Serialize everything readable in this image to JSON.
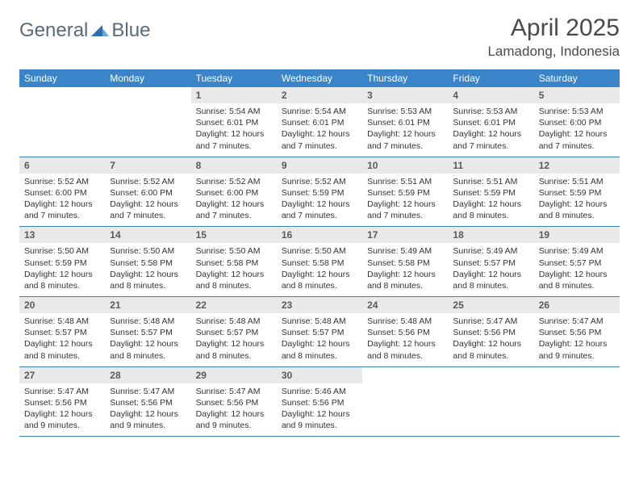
{
  "brand": {
    "part1": "General",
    "part2": "Blue"
  },
  "title": "April 2025",
  "location": "Lamadong, Indonesia",
  "colors": {
    "header_bg": "#3a85c9",
    "header_text": "#ffffff",
    "daynum_bg": "#e9e9e9",
    "border": "#3a7fb5",
    "logo_gray": "#5a6b78",
    "logo_blue": "#3a7fc4",
    "text": "#333333"
  },
  "weekdays": [
    "Sunday",
    "Monday",
    "Tuesday",
    "Wednesday",
    "Thursday",
    "Friday",
    "Saturday"
  ],
  "weeks": [
    [
      {
        "n": "",
        "sr": "",
        "ss": "",
        "dl": ""
      },
      {
        "n": "",
        "sr": "",
        "ss": "",
        "dl": ""
      },
      {
        "n": "1",
        "sr": "5:54 AM",
        "ss": "6:01 PM",
        "dl": "12 hours and 7 minutes."
      },
      {
        "n": "2",
        "sr": "5:54 AM",
        "ss": "6:01 PM",
        "dl": "12 hours and 7 minutes."
      },
      {
        "n": "3",
        "sr": "5:53 AM",
        "ss": "6:01 PM",
        "dl": "12 hours and 7 minutes."
      },
      {
        "n": "4",
        "sr": "5:53 AM",
        "ss": "6:01 PM",
        "dl": "12 hours and 7 minutes."
      },
      {
        "n": "5",
        "sr": "5:53 AM",
        "ss": "6:00 PM",
        "dl": "12 hours and 7 minutes."
      }
    ],
    [
      {
        "n": "6",
        "sr": "5:52 AM",
        "ss": "6:00 PM",
        "dl": "12 hours and 7 minutes."
      },
      {
        "n": "7",
        "sr": "5:52 AM",
        "ss": "6:00 PM",
        "dl": "12 hours and 7 minutes."
      },
      {
        "n": "8",
        "sr": "5:52 AM",
        "ss": "6:00 PM",
        "dl": "12 hours and 7 minutes."
      },
      {
        "n": "9",
        "sr": "5:52 AM",
        "ss": "5:59 PM",
        "dl": "12 hours and 7 minutes."
      },
      {
        "n": "10",
        "sr": "5:51 AM",
        "ss": "5:59 PM",
        "dl": "12 hours and 7 minutes."
      },
      {
        "n": "11",
        "sr": "5:51 AM",
        "ss": "5:59 PM",
        "dl": "12 hours and 8 minutes."
      },
      {
        "n": "12",
        "sr": "5:51 AM",
        "ss": "5:59 PM",
        "dl": "12 hours and 8 minutes."
      }
    ],
    [
      {
        "n": "13",
        "sr": "5:50 AM",
        "ss": "5:59 PM",
        "dl": "12 hours and 8 minutes."
      },
      {
        "n": "14",
        "sr": "5:50 AM",
        "ss": "5:58 PM",
        "dl": "12 hours and 8 minutes."
      },
      {
        "n": "15",
        "sr": "5:50 AM",
        "ss": "5:58 PM",
        "dl": "12 hours and 8 minutes."
      },
      {
        "n": "16",
        "sr": "5:50 AM",
        "ss": "5:58 PM",
        "dl": "12 hours and 8 minutes."
      },
      {
        "n": "17",
        "sr": "5:49 AM",
        "ss": "5:58 PM",
        "dl": "12 hours and 8 minutes."
      },
      {
        "n": "18",
        "sr": "5:49 AM",
        "ss": "5:57 PM",
        "dl": "12 hours and 8 minutes."
      },
      {
        "n": "19",
        "sr": "5:49 AM",
        "ss": "5:57 PM",
        "dl": "12 hours and 8 minutes."
      }
    ],
    [
      {
        "n": "20",
        "sr": "5:48 AM",
        "ss": "5:57 PM",
        "dl": "12 hours and 8 minutes."
      },
      {
        "n": "21",
        "sr": "5:48 AM",
        "ss": "5:57 PM",
        "dl": "12 hours and 8 minutes."
      },
      {
        "n": "22",
        "sr": "5:48 AM",
        "ss": "5:57 PM",
        "dl": "12 hours and 8 minutes."
      },
      {
        "n": "23",
        "sr": "5:48 AM",
        "ss": "5:57 PM",
        "dl": "12 hours and 8 minutes."
      },
      {
        "n": "24",
        "sr": "5:48 AM",
        "ss": "5:56 PM",
        "dl": "12 hours and 8 minutes."
      },
      {
        "n": "25",
        "sr": "5:47 AM",
        "ss": "5:56 PM",
        "dl": "12 hours and 8 minutes."
      },
      {
        "n": "26",
        "sr": "5:47 AM",
        "ss": "5:56 PM",
        "dl": "12 hours and 9 minutes."
      }
    ],
    [
      {
        "n": "27",
        "sr": "5:47 AM",
        "ss": "5:56 PM",
        "dl": "12 hours and 9 minutes."
      },
      {
        "n": "28",
        "sr": "5:47 AM",
        "ss": "5:56 PM",
        "dl": "12 hours and 9 minutes."
      },
      {
        "n": "29",
        "sr": "5:47 AM",
        "ss": "5:56 PM",
        "dl": "12 hours and 9 minutes."
      },
      {
        "n": "30",
        "sr": "5:46 AM",
        "ss": "5:56 PM",
        "dl": "12 hours and 9 minutes."
      },
      {
        "n": "",
        "sr": "",
        "ss": "",
        "dl": ""
      },
      {
        "n": "",
        "sr": "",
        "ss": "",
        "dl": ""
      },
      {
        "n": "",
        "sr": "",
        "ss": "",
        "dl": ""
      }
    ]
  ],
  "labels": {
    "sunrise": "Sunrise: ",
    "sunset": "Sunset: ",
    "daylight": "Daylight: "
  }
}
